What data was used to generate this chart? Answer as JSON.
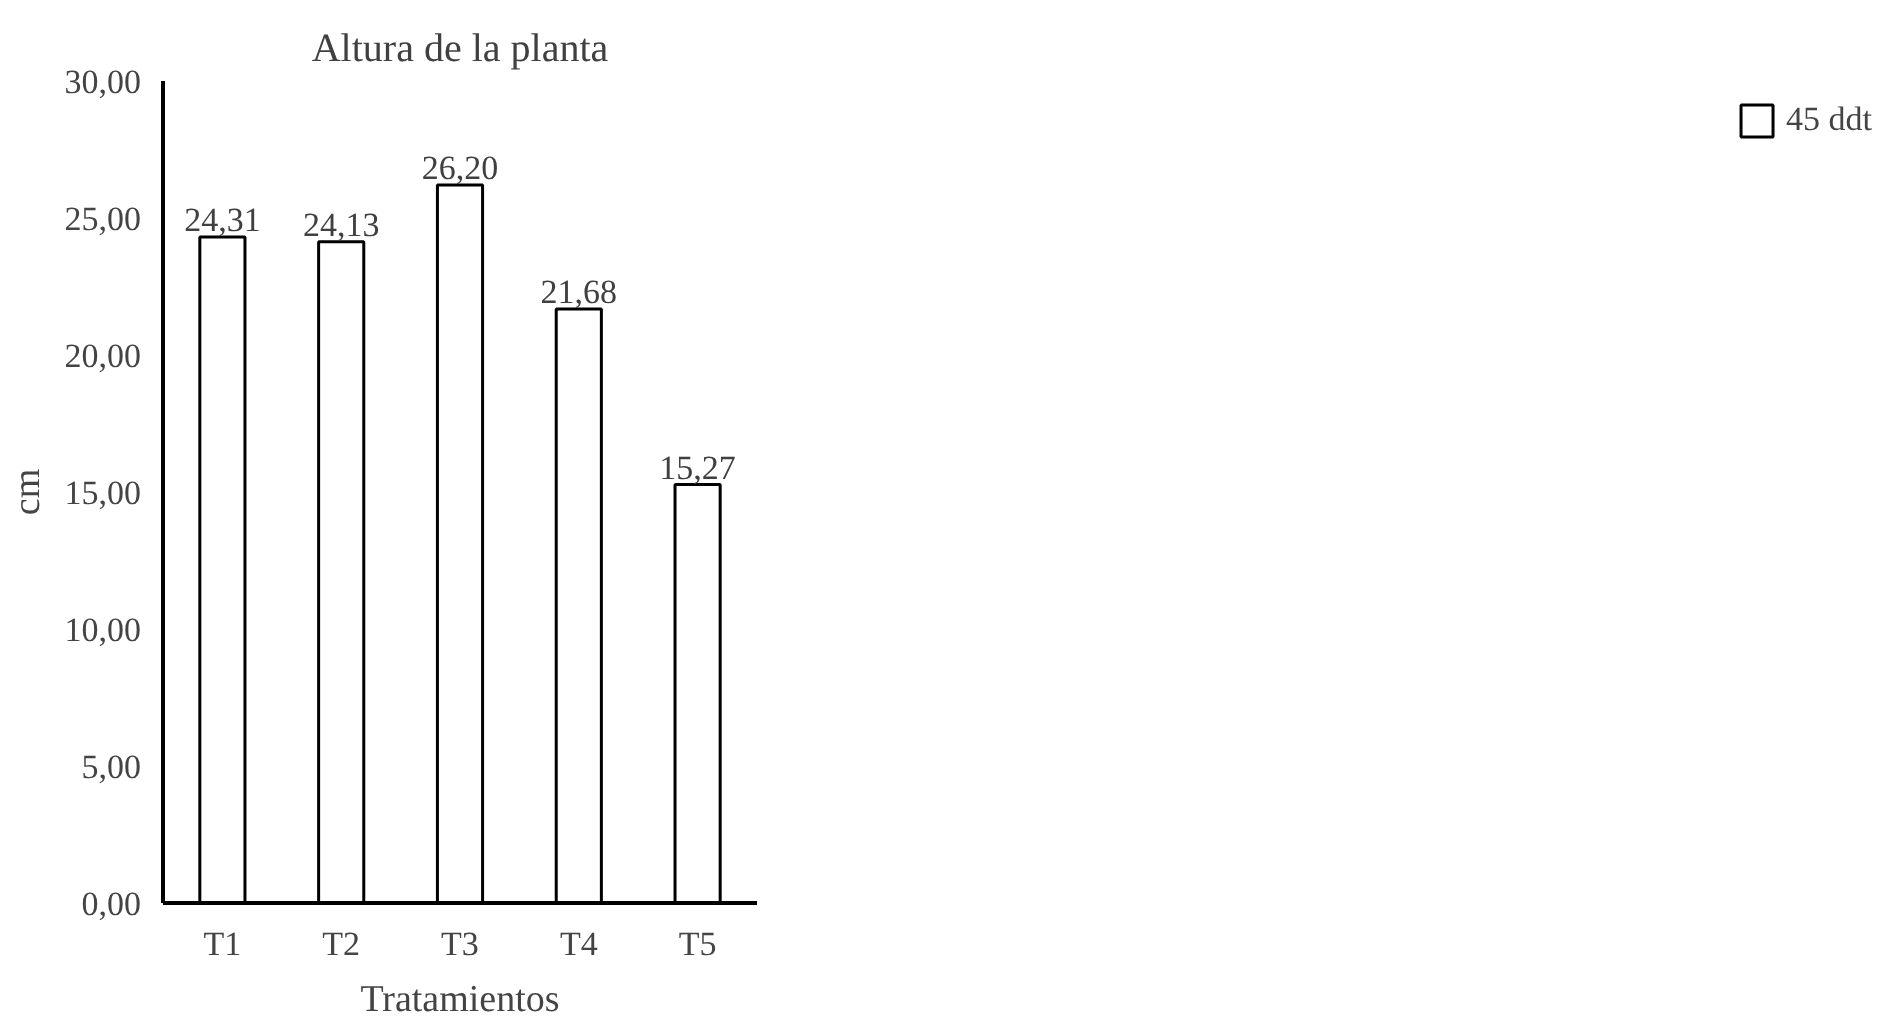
{
  "chart_data": {
    "type": "bar",
    "title": "Altura de la planta",
    "xlabel": "Tratamientos",
    "ylabel": "cm",
    "categories": [
      "T1",
      "T2",
      "T3",
      "T4",
      "T5"
    ],
    "series": [
      {
        "name": "45 ddt",
        "color": "#ffffff",
        "values": [
          24.31,
          24.13,
          26.2,
          21.68,
          15.27
        ],
        "value_labels": [
          "24,31",
          "24,13",
          "26,20",
          "21,68",
          "15,27"
        ]
      }
    ],
    "ylim": [
      0,
      30
    ],
    "yticks": [
      {
        "value": 0,
        "label": "0,00"
      },
      {
        "value": 5,
        "label": "5,00"
      },
      {
        "value": 10,
        "label": "10,00"
      },
      {
        "value": 15,
        "label": "15,00"
      },
      {
        "value": 20,
        "label": "20,00"
      },
      {
        "value": 25,
        "label": "25,00"
      },
      {
        "value": 30,
        "label": "30,00"
      }
    ],
    "grid": false,
    "legend": "right"
  }
}
